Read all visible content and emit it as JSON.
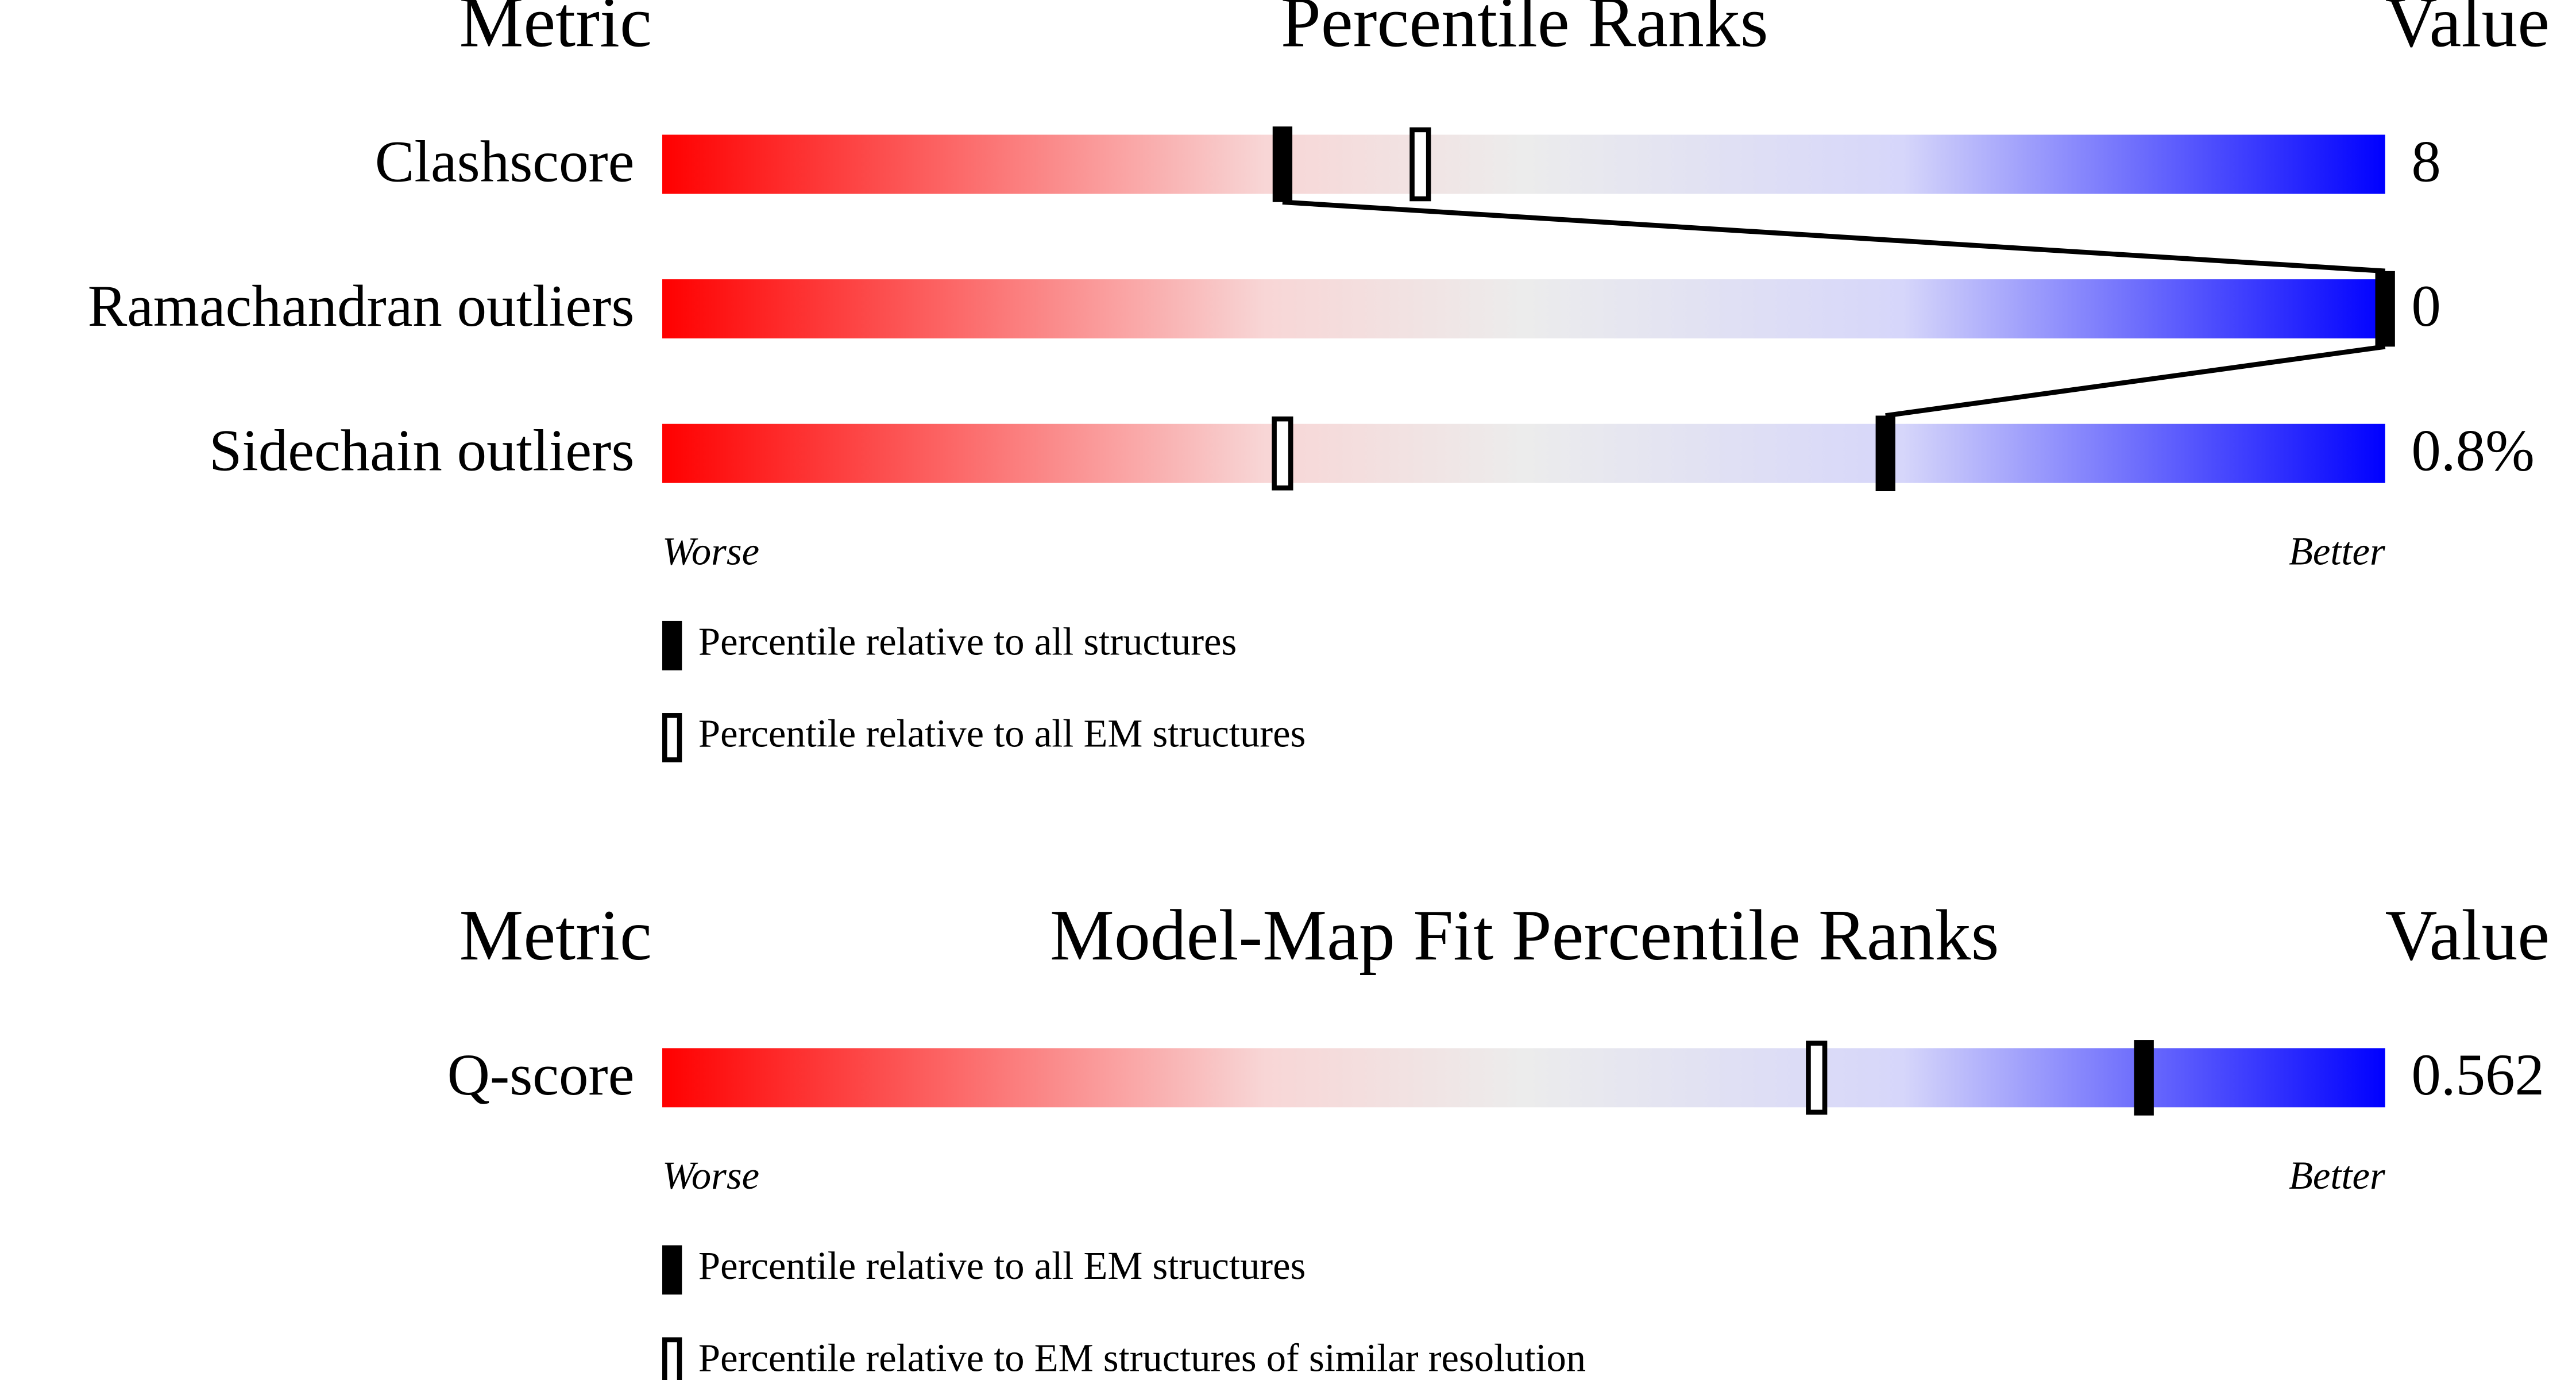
{
  "chart_data": [
    {
      "type": "slider",
      "title": "Percentile Ranks",
      "metric_header": "Metric",
      "value_header": "Value",
      "categories": [
        "Clashscore",
        "Ramachandran outliers",
        "Sidechain outliers"
      ],
      "value_labels": [
        "8",
        "0",
        "0.8%"
      ],
      "worse_label": "Worse",
      "better_label": "Better",
      "xlim": [
        0,
        100
      ],
      "series": [
        {
          "name": "Percentile relative to all structures",
          "color": "#000000",
          "values": [
            36,
            100,
            71
          ]
        },
        {
          "name": "Percentile relative to all EM structures",
          "color": "#000000",
          "values": [
            44,
            null,
            36
          ]
        }
      ]
    },
    {
      "type": "slider",
      "title": "Model-Map Fit Percentile Ranks",
      "metric_header": "Metric",
      "value_header": "Value",
      "categories": [
        "Q-score"
      ],
      "value_labels": [
        "0.562"
      ],
      "worse_label": "Worse",
      "better_label": "Better",
      "xlim": [
        0,
        100
      ],
      "series": [
        {
          "name": "Percentile relative to all EM structures",
          "color": "#000000",
          "values": [
            86
          ]
        },
        {
          "name": "Percentile relative to EM structures of similar resolution",
          "color": "#000000",
          "values": [
            67
          ]
        }
      ]
    }
  ]
}
